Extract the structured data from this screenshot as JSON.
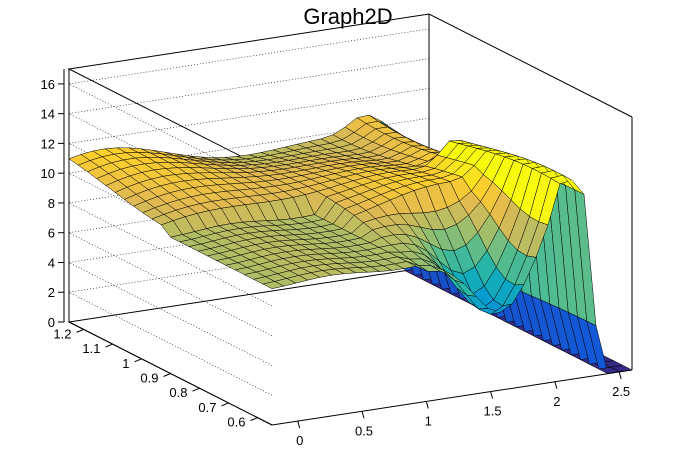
{
  "chart_data": {
    "type": "surface3d",
    "title": "Graph2D",
    "x_ticks": [
      "0",
      "0.5",
      "1",
      "1.5",
      "2",
      "2.5"
    ],
    "y_ticks": [
      "0.6",
      "0.7",
      "0.8",
      "0.9",
      "1",
      "1.1",
      "1.2"
    ],
    "z_ticks": [
      "0",
      "2",
      "4",
      "6",
      "8",
      "10",
      "12",
      "14",
      "16"
    ],
    "xlim": [
      -0.2,
      2.6
    ],
    "ylim": [
      0.55,
      1.25
    ],
    "zlim": [
      0,
      17
    ],
    "grid": true,
    "colormap": "parula",
    "surface_summary": {
      "plateau_height": 10,
      "block_x_range": [
        -0.2,
        1.0
      ],
      "block_y_range": [
        0.55,
        0.9
      ],
      "block_height": 9.3,
      "peak_x": 2.1,
      "peak_height": 12,
      "outside_value": 0
    }
  }
}
